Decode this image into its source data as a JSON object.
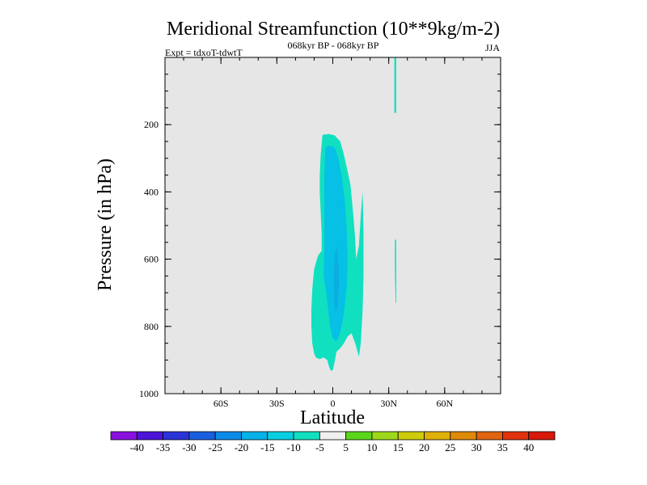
{
  "chart_data": {
    "type": "contour",
    "title": "Meridional Streamfunction (10**9kg/m-2)",
    "subtitle": "068kyr BP - 068kyr BP",
    "left_label": "Expt = tdxoT-tdwtT",
    "right_label": "JJA",
    "xlabel": "Latitude",
    "ylabel": "Pressure (in hPa)",
    "xlim": [
      -90,
      90
    ],
    "ylim": [
      1000,
      0
    ],
    "x_ticks": [
      {
        "value": -60,
        "label": "60S"
      },
      {
        "value": -30,
        "label": "30S"
      },
      {
        "value": 0,
        "label": "0"
      },
      {
        "value": 30,
        "label": "30N"
      },
      {
        "value": 60,
        "label": "60N"
      }
    ],
    "y_ticks": [
      {
        "value": 200,
        "label": "200"
      },
      {
        "value": 400,
        "label": "400"
      },
      {
        "value": 600,
        "label": "600"
      },
      {
        "value": 800,
        "label": "800"
      },
      {
        "value": 1000,
        "label": "1000"
      }
    ],
    "background_color": "#e6e6e6",
    "colorbar": {
      "levels": [
        "-40",
        "-35",
        "-30",
        "-25",
        "-20",
        "-15",
        "-10",
        "-5",
        "5",
        "10",
        "15",
        "20",
        "25",
        "30",
        "35",
        "40"
      ],
      "colors": [
        "#8a10e0",
        "#4b14d8",
        "#2a34d6",
        "#1a5ee0",
        "#0c8ce8",
        "#06b2e8",
        "#08cfe0",
        "#10e0c0",
        "#f0f0f0",
        "#5cd61c",
        "#9ed81a",
        "#cccc0a",
        "#e0b00a",
        "#e08a0a",
        "#e06410",
        "#e0320c",
        "#d81808"
      ]
    },
    "regions": [
      {
        "name": "outer -10 to -5 cell",
        "level": "-10 to -5",
        "color": "#10e0c0",
        "polygon": [
          [
            -5.5,
            230
          ],
          [
            -2,
            228
          ],
          [
            1,
            232
          ],
          [
            4,
            250
          ],
          [
            6,
            290
          ],
          [
            8,
            340
          ],
          [
            9.5,
            380
          ],
          [
            11,
            470
          ],
          [
            12,
            540
          ],
          [
            12.5,
            600
          ],
          [
            14,
            560
          ],
          [
            15,
            470
          ],
          [
            16,
            400
          ],
          [
            16.5,
            520
          ],
          [
            16.5,
            650
          ],
          [
            16,
            750
          ],
          [
            15,
            850
          ],
          [
            14,
            890
          ],
          [
            12,
            850
          ],
          [
            10,
            820
          ],
          [
            8,
            830
          ],
          [
            6,
            850
          ],
          [
            4,
            865
          ],
          [
            2,
            875
          ],
          [
            1,
            905
          ],
          [
            0,
            930
          ],
          [
            -1,
            932
          ],
          [
            -2,
            920
          ],
          [
            -3,
            900
          ],
          [
            -5,
            892
          ],
          [
            -7,
            897
          ],
          [
            -9,
            893
          ],
          [
            -10,
            880
          ],
          [
            -11,
            850
          ],
          [
            -11.5,
            800
          ],
          [
            -11.5,
            750
          ],
          [
            -11,
            690
          ],
          [
            -10,
            630
          ],
          [
            -8,
            590
          ],
          [
            -6,
            575
          ],
          [
            -6,
            520
          ],
          [
            -6.5,
            460
          ],
          [
            -7,
            400
          ],
          [
            -7,
            350
          ],
          [
            -6.5,
            290
          ]
        ]
      },
      {
        "name": "inner -15 to -10 core",
        "level": "-15 to -10",
        "color": "#06c0e6",
        "polygon": [
          [
            -4,
            270
          ],
          [
            -2,
            262
          ],
          [
            1,
            268
          ],
          [
            3,
            300
          ],
          [
            5,
            360
          ],
          [
            6.5,
            430
          ],
          [
            7.5,
            520
          ],
          [
            8,
            600
          ],
          [
            7.5,
            680
          ],
          [
            6,
            760
          ],
          [
            4,
            820
          ],
          [
            2,
            845
          ],
          [
            0,
            835
          ],
          [
            -1.5,
            800
          ],
          [
            -2.5,
            750
          ],
          [
            -3.5,
            700
          ],
          [
            -5,
            650
          ],
          [
            -4.5,
            560
          ],
          [
            -4.5,
            460
          ],
          [
            -4.5,
            360
          ]
        ]
      },
      {
        "name": "strongest core",
        "level": "-15 to -10",
        "color": "#0aaee0",
        "polygon": [
          [
            2,
            560
          ],
          [
            3.2,
            620
          ],
          [
            3.4,
            680
          ],
          [
            2.5,
            740
          ],
          [
            1.5,
            760
          ],
          [
            0.8,
            730
          ],
          [
            0.5,
            680
          ],
          [
            0.6,
            630
          ],
          [
            1.2,
            585
          ]
        ]
      },
      {
        "name": "narrow strip near 30N",
        "level": "-10 to -5",
        "color": "#10e0c0",
        "polygon": [
          [
            33,
            0
          ],
          [
            34,
            0
          ],
          [
            34,
            165
          ],
          [
            33,
            165
          ]
        ]
      },
      {
        "name": "small patch near 30N",
        "level": "-10 to -5",
        "color": "#10e0c0",
        "polygon": [
          [
            33.3,
            540
          ],
          [
            34,
            545
          ],
          [
            34,
            730
          ],
          [
            33.7,
            730
          ],
          [
            33.4,
            665
          ],
          [
            33.3,
            620
          ]
        ]
      }
    ]
  }
}
